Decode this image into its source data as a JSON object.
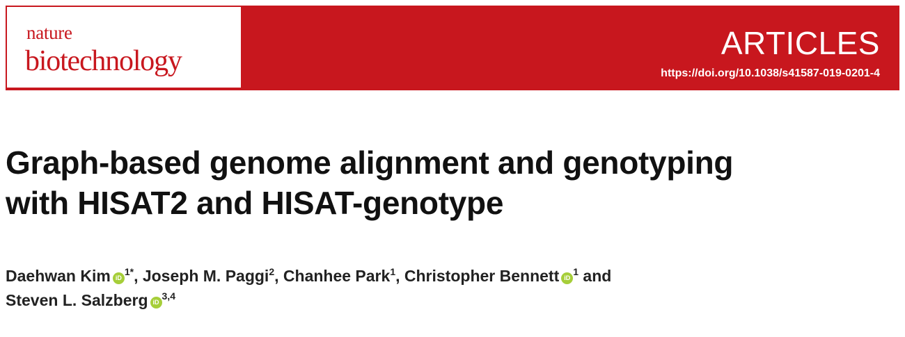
{
  "banner": {
    "journal_line1": "nature",
    "journal_line2": "biotechnology",
    "section": "ARTICLES",
    "doi": "https://doi.org/10.1038/s41587-019-0201-4",
    "color": "#c8171e"
  },
  "article": {
    "title_line1": "Graph-based genome alignment and genotyping",
    "title_line2": "with HISAT2 and HISAT-genotype"
  },
  "authors": [
    {
      "name": "Daehwan Kim",
      "orcid": "iD",
      "sup": "1*",
      "sep": ", "
    },
    {
      "name": "Joseph M. Paggi",
      "orcid": "",
      "sup": "2",
      "sep": ", "
    },
    {
      "name": "Chanhee Park",
      "orcid": "",
      "sup": "1",
      "sep": ", "
    },
    {
      "name": "Christopher Bennett",
      "orcid": "iD",
      "sup": "1",
      "sep": " and"
    },
    {
      "name": "Steven L. Salzberg",
      "orcid": "iD",
      "sup": "3,4",
      "sep": ""
    }
  ]
}
